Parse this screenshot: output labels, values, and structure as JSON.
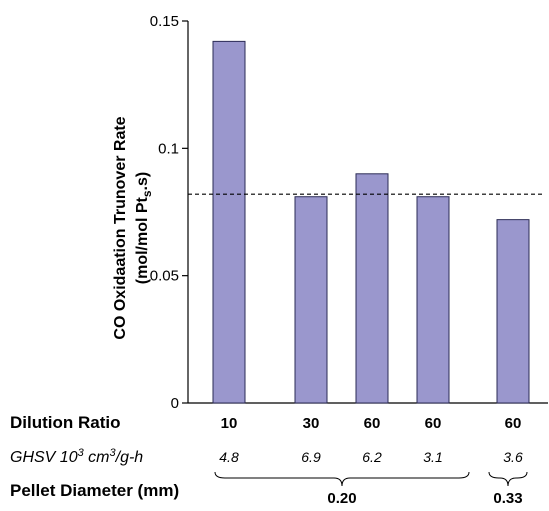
{
  "chart_data": {
    "type": "bar",
    "categories": [
      "10",
      "30",
      "60",
      "60",
      "60"
    ],
    "values": [
      0.142,
      0.081,
      0.09,
      0.081,
      0.072
    ],
    "ylim": [
      0,
      0.15
    ],
    "yticks": [
      "0",
      "0.05",
      "0.1",
      "0.15"
    ],
    "ytick_values": [
      0,
      0.05,
      0.1,
      0.15
    ],
    "reference_line": 0.082,
    "ylabel_line1": "CO Oxidaation Trunover Rate",
    "ylabel_line2_prefix": "(mol/mol Pt",
    "ylabel_line2_sub": "s",
    "ylabel_line2_suffix": ".s)",
    "bar_color": "#9a97cd",
    "bar_edge": "#2b2b55",
    "rows": {
      "dilution_label": "Dilution Ratio",
      "ghsv_label_prefix": "GHSV 10",
      "ghsv_label_sup": "3",
      "ghsv_label_mid": " cm",
      "ghsv_label_sup2": "3",
      "ghsv_label_suffix": "/g-h",
      "ghsv_values": [
        "4.8",
        "6.9",
        "6.2",
        "3.1",
        "3.6"
      ],
      "pellet_label": "Pellet Diameter (mm)",
      "pellet_groups": [
        {
          "label": "0.20",
          "first": 0,
          "last": 3
        },
        {
          "label": "0.33",
          "first": 4,
          "last": 4
        }
      ]
    }
  }
}
